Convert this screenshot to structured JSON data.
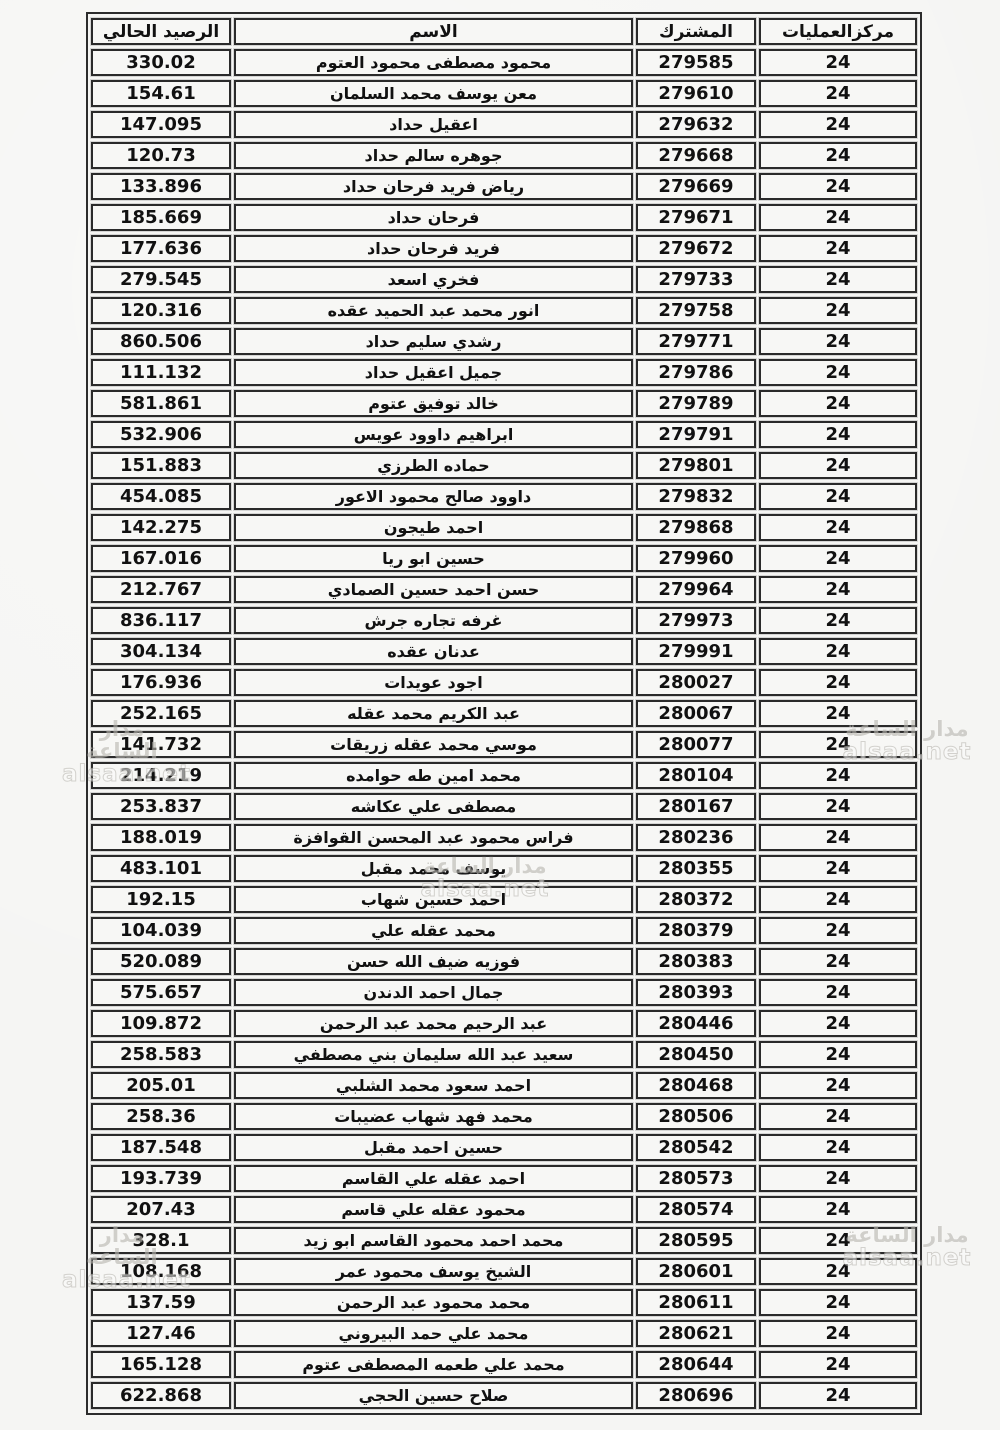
{
  "document": {
    "kind": "scanned-subscribers-balance-list",
    "language": "ar",
    "background_color": "#f5f5f3",
    "border_color": "#2a2a2a",
    "text_color": "#111111"
  },
  "watermark": {
    "line1": "مدار الساعة",
    "line2": "alsaa.net"
  },
  "table": {
    "headers": {
      "center": "مركزالعمليات",
      "subscriber": "المشترك",
      "name": "الاسم",
      "balance": "الرصيد الحالي"
    },
    "rows": [
      {
        "center": "24",
        "subscriber": "279585",
        "name": "محمود مصطفى محمود العتوم",
        "balance": "330.02"
      },
      {
        "center": "24",
        "subscriber": "279610",
        "name": "معن يوسف محمد السلمان",
        "balance": "154.61"
      },
      {
        "center": "24",
        "subscriber": "279632",
        "name": "اعقيل حداد",
        "balance": "147.095"
      },
      {
        "center": "24",
        "subscriber": "279668",
        "name": "جوهره سالم حداد",
        "balance": "120.73"
      },
      {
        "center": "24",
        "subscriber": "279669",
        "name": "رياض فريد فرحان حداد",
        "balance": "133.896"
      },
      {
        "center": "24",
        "subscriber": "279671",
        "name": "فرحان حداد",
        "balance": "185.669"
      },
      {
        "center": "24",
        "subscriber": "279672",
        "name": "فريد فرحان حداد",
        "balance": "177.636"
      },
      {
        "center": "24",
        "subscriber": "279733",
        "name": "فخري اسعد",
        "balance": "279.545"
      },
      {
        "center": "24",
        "subscriber": "279758",
        "name": "انور محمد عبد الحميد عقده",
        "balance": "120.316"
      },
      {
        "center": "24",
        "subscriber": "279771",
        "name": "رشدي سليم حداد",
        "balance": "860.506"
      },
      {
        "center": "24",
        "subscriber": "279786",
        "name": "جميل اعقيل حداد",
        "balance": "111.132"
      },
      {
        "center": "24",
        "subscriber": "279789",
        "name": "خالد توفيق عتوم",
        "balance": "581.861"
      },
      {
        "center": "24",
        "subscriber": "279791",
        "name": "ابراهيم داوود عويس",
        "balance": "532.906"
      },
      {
        "center": "24",
        "subscriber": "279801",
        "name": "حماده الطرزي",
        "balance": "151.883"
      },
      {
        "center": "24",
        "subscriber": "279832",
        "name": "داوود صالح محمود الاعور",
        "balance": "454.085"
      },
      {
        "center": "24",
        "subscriber": "279868",
        "name": "احمد طيجون",
        "balance": "142.275"
      },
      {
        "center": "24",
        "subscriber": "279960",
        "name": "حسين ابو ريا",
        "balance": "167.016"
      },
      {
        "center": "24",
        "subscriber": "279964",
        "name": "حسن احمد حسين الصمادي",
        "balance": "212.767"
      },
      {
        "center": "24",
        "subscriber": "279973",
        "name": "غرفه تجاره جرش",
        "balance": "836.117"
      },
      {
        "center": "24",
        "subscriber": "279991",
        "name": "عدنان عقده",
        "balance": "304.134"
      },
      {
        "center": "24",
        "subscriber": "280027",
        "name": "اجود عويدات",
        "balance": "176.936"
      },
      {
        "center": "24",
        "subscriber": "280067",
        "name": "عبد الكريم محمد عقله",
        "balance": "252.165"
      },
      {
        "center": "24",
        "subscriber": "280077",
        "name": "موسي محمد عقله زريقات",
        "balance": "141.732"
      },
      {
        "center": "24",
        "subscriber": "280104",
        "name": "محمد امين طه حوامده",
        "balance": "214.219"
      },
      {
        "center": "24",
        "subscriber": "280167",
        "name": "مصطفى علي عكاشه",
        "balance": "253.837"
      },
      {
        "center": "24",
        "subscriber": "280236",
        "name": "فراس محمود عبد المحسن القوافزة",
        "balance": "188.019"
      },
      {
        "center": "24",
        "subscriber": "280355",
        "name": "يوسف محمد مقبل",
        "balance": "483.101"
      },
      {
        "center": "24",
        "subscriber": "280372",
        "name": "احمد حسين شهاب",
        "balance": "192.15"
      },
      {
        "center": "24",
        "subscriber": "280379",
        "name": "محمد عقله علي",
        "balance": "104.039"
      },
      {
        "center": "24",
        "subscriber": "280383",
        "name": "فوزيه ضيف الله حسن",
        "balance": "520.089"
      },
      {
        "center": "24",
        "subscriber": "280393",
        "name": "جمال احمد الدندن",
        "balance": "575.657"
      },
      {
        "center": "24",
        "subscriber": "280446",
        "name": "عبد الرحيم محمد عبد الرحمن",
        "balance": "109.872"
      },
      {
        "center": "24",
        "subscriber": "280450",
        "name": "سعيد عبد الله سليمان بني مصطفي",
        "balance": "258.583"
      },
      {
        "center": "24",
        "subscriber": "280468",
        "name": "احمد سعود محمد الشلبي",
        "balance": "205.01"
      },
      {
        "center": "24",
        "subscriber": "280506",
        "name": "محمد فهد شهاب عضيبات",
        "balance": "258.36"
      },
      {
        "center": "24",
        "subscriber": "280542",
        "name": "حسين احمد مقبل",
        "balance": "187.548"
      },
      {
        "center": "24",
        "subscriber": "280573",
        "name": "احمد عقله علي القاسم",
        "balance": "193.739"
      },
      {
        "center": "24",
        "subscriber": "280574",
        "name": "محمود عقله علي قاسم",
        "balance": "207.43"
      },
      {
        "center": "24",
        "subscriber": "280595",
        "name": "محمد احمد محمود القاسم ابو زيد",
        "balance": "328.1"
      },
      {
        "center": "24",
        "subscriber": "280601",
        "name": "الشيخ يوسف محمود عمر",
        "balance": "108.168"
      },
      {
        "center": "24",
        "subscriber": "280611",
        "name": "محمد محمود عبد الرحمن",
        "balance": "137.59"
      },
      {
        "center": "24",
        "subscriber": "280621",
        "name": "محمد علي حمد البيروني",
        "balance": "127.46"
      },
      {
        "center": "24",
        "subscriber": "280644",
        "name": "محمد علي طعمه المصطفى عتوم",
        "balance": "165.128"
      },
      {
        "center": "24",
        "subscriber": "280696",
        "name": "صلاح حسين الحجي",
        "balance": "622.868"
      }
    ]
  }
}
